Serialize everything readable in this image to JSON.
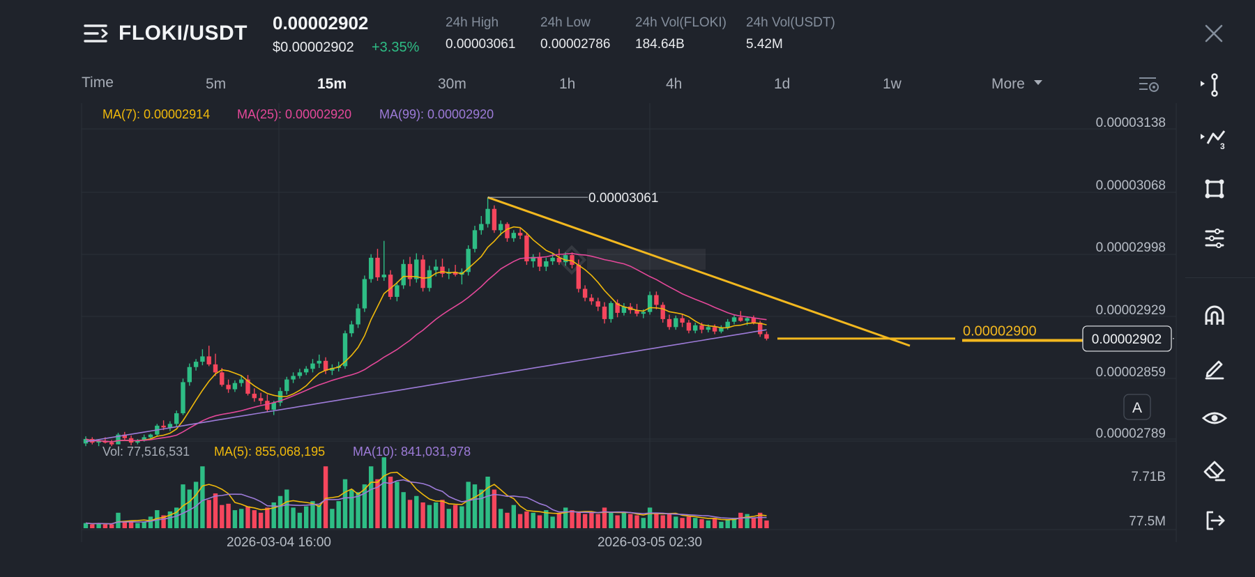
{
  "header": {
    "pair": "FLOKI/USDT",
    "last_price": "0.00002902",
    "usd_price": "$0.00002902",
    "change": "+3.35%",
    "stats": [
      {
        "label": "24h High",
        "value": "0.00003061"
      },
      {
        "label": "24h Low",
        "value": "0.00002786"
      },
      {
        "label": "24h Vol(FLOKI)",
        "value": "184.64B"
      },
      {
        "label": "24h Vol(USDT)",
        "value": "5.42M"
      }
    ]
  },
  "intervals": {
    "items": [
      "Time",
      "5m",
      "15m",
      "30m",
      "1h",
      "4h",
      "1d",
      "1w",
      "More"
    ],
    "active": "15m"
  },
  "legend": {
    "ma7": "MA(7): 0.00002914",
    "ma25": "MA(25): 0.00002920",
    "ma99": "MA(99): 0.00002920",
    "vol": "Vol: 77,516,531",
    "vol_ma5": "MA(5): 855,068,195",
    "vol_ma10": "MA(10): 841,031,978"
  },
  "colors": {
    "up": "#2ebd85",
    "down": "#f6465d",
    "ma7": "#f0b90b",
    "ma25": "#e5489a",
    "ma99": "#9d7bd8",
    "trendline": "#f3b81f",
    "bg": "#1f232b",
    "grid": "#2b3139"
  },
  "auto_scale_label": "A",
  "chart_data": {
    "type": "candlestick",
    "price_axis_ticks": [
      3.138e-05,
      3.068e-05,
      2.998e-05,
      2.929e-05,
      2.859e-05,
      2.789e-05
    ],
    "price_axis_labels": [
      "0.00003138",
      "0.00003068",
      "0.00002998",
      "0.00002929",
      "0.00002859",
      "0.00002789"
    ],
    "volume_axis_labels": [
      "7.71B",
      "77.5M"
    ],
    "time_labels": [
      "2026-03-04 16:00",
      "2026-03-05 02:30"
    ],
    "high_annotation": "0.00003061",
    "horizontal_line_label": "0.00002900",
    "current_price_label": "0.00002902",
    "candles_ohlcv": [
      [
        2784,
        2792,
        2781,
        2789,
        0.4
      ],
      [
        2789,
        2791,
        2783,
        2785,
        0.3
      ],
      [
        2785,
        2789,
        2781,
        2787,
        0.4
      ],
      [
        2787,
        2791,
        2784,
        2785,
        0.3
      ],
      [
        2785,
        2788,
        2781,
        2783,
        0.3
      ],
      [
        2783,
        2796,
        2783,
        2794,
        1.2
      ],
      [
        2794,
        2797,
        2788,
        2790,
        0.5
      ],
      [
        2790,
        2793,
        2782,
        2785,
        0.6
      ],
      [
        2785,
        2789,
        2783,
        2787,
        0.4
      ],
      [
        2787,
        2794,
        2786,
        2791,
        0.5
      ],
      [
        2791,
        2795,
        2788,
        2794,
        0.9
      ],
      [
        2794,
        2806,
        2792,
        2804,
        1.4
      ],
      [
        2804,
        2810,
        2799,
        2802,
        1.0
      ],
      [
        2802,
        2809,
        2798,
        2806,
        1.3
      ],
      [
        2806,
        2821,
        2803,
        2818,
        1.6
      ],
      [
        2818,
        2857,
        2816,
        2853,
        3.4
      ],
      [
        2853,
        2874,
        2849,
        2870,
        3.0
      ],
      [
        2870,
        2879,
        2866,
        2876,
        3.6
      ],
      [
        2876,
        2890,
        2872,
        2882,
        4.8
      ],
      [
        2882,
        2894,
        2871,
        2873,
        2.2
      ],
      [
        2873,
        2885,
        2860,
        2864,
        2.7
      ],
      [
        2864,
        2869,
        2848,
        2850,
        1.8
      ],
      [
        2850,
        2856,
        2841,
        2845,
        1.9
      ],
      [
        2845,
        2855,
        2842,
        2852,
        1.4
      ],
      [
        2852,
        2860,
        2848,
        2856,
        1.5
      ],
      [
        2856,
        2861,
        2838,
        2840,
        1.7
      ],
      [
        2840,
        2846,
        2831,
        2835,
        1.4
      ],
      [
        2835,
        2841,
        2828,
        2832,
        1.2
      ],
      [
        2832,
        2839,
        2819,
        2822,
        1.6
      ],
      [
        2822,
        2832,
        2816,
        2830,
        2.0
      ],
      [
        2830,
        2847,
        2826,
        2843,
        2.5
      ],
      [
        2843,
        2859,
        2839,
        2856,
        3.0
      ],
      [
        2856,
        2864,
        2852,
        2860,
        1.6
      ],
      [
        2860,
        2868,
        2857,
        2864,
        1.2
      ],
      [
        2864,
        2871,
        2861,
        2868,
        1.7
      ],
      [
        2868,
        2879,
        2864,
        2874,
        2.1
      ],
      [
        2874,
        2884,
        2869,
        2877,
        1.8
      ],
      [
        2877,
        2881,
        2862,
        2866,
        4.8
      ],
      [
        2866,
        2873,
        2861,
        2869,
        1.5
      ],
      [
        2869,
        2876,
        2865,
        2871,
        2.1
      ],
      [
        2871,
        2911,
        2868,
        2908,
        3.8
      ],
      [
        2908,
        2922,
        2904,
        2918,
        3.0
      ],
      [
        2918,
        2941,
        2914,
        2936,
        2.8
      ],
      [
        2936,
        2973,
        2932,
        2969,
        3.4
      ],
      [
        2969,
        2997,
        2965,
        2993,
        4.8
      ],
      [
        2993,
        3003,
        2967,
        2971,
        3.8
      ],
      [
        2971,
        3012,
        2967,
        2974,
        5.5
      ],
      [
        2974,
        2979,
        2946,
        2949,
        4.0
      ],
      [
        2949,
        2966,
        2944,
        2962,
        3.6
      ],
      [
        2962,
        2991,
        2958,
        2986,
        2.8
      ],
      [
        2986,
        2994,
        2961,
        2969,
        2.2
      ],
      [
        2969,
        2998,
        2965,
        2991,
        2.5
      ],
      [
        2991,
        2996,
        2955,
        2959,
        2.0
      ],
      [
        2959,
        2984,
        2955,
        2979,
        1.8
      ],
      [
        2979,
        2991,
        2972,
        2983,
        2.0
      ],
      [
        2983,
        2992,
        2971,
        2975,
        2.2
      ],
      [
        2975,
        2981,
        2969,
        2977,
        1.5
      ],
      [
        2977,
        2985,
        2972,
        2974,
        1.8
      ],
      [
        2974,
        2981,
        2963,
        2977,
        1.7
      ],
      [
        2977,
        3007,
        2973,
        3003,
        3.6
      ],
      [
        3003,
        3029,
        2999,
        3024,
        3.4
      ],
      [
        3024,
        3040,
        3019,
        3031,
        3.0
      ],
      [
        3031,
        3061,
        3027,
        3048,
        4.0
      ],
      [
        3048,
        3052,
        3021,
        3024,
        3.0
      ],
      [
        3024,
        3035,
        3018,
        3031,
        1.5
      ],
      [
        3031,
        3033,
        3011,
        3015,
        1.2
      ],
      [
        3015,
        3024,
        3011,
        3021,
        1.8
      ],
      [
        3021,
        3026,
        3014,
        3018,
        1.1
      ],
      [
        3018,
        3021,
        2985,
        2989,
        1.3
      ],
      [
        2989,
        2997,
        2982,
        2994,
        1.2
      ],
      [
        2994,
        2999,
        2978,
        2983,
        1.0
      ],
      [
        2983,
        2993,
        2978,
        2989,
        1.4
      ],
      [
        2989,
        2998,
        2985,
        2993,
        0.9
      ],
      [
        2993,
        3003,
        2985,
        2988,
        1.2
      ],
      [
        2988,
        2999,
        2984,
        2996,
        1.6
      ],
      [
        2996,
        2999,
        2981,
        2985,
        1.4
      ],
      [
        2985,
        2991,
        2954,
        2958,
        1.2
      ],
      [
        2958,
        2962,
        2944,
        2948,
        1.1
      ],
      [
        2948,
        2952,
        2940,
        2944,
        1.2
      ],
      [
        2944,
        2948,
        2933,
        2938,
        1.1
      ],
      [
        2938,
        2943,
        2919,
        2924,
        1.6
      ],
      [
        2924,
        2944,
        2920,
        2942,
        1.2
      ],
      [
        2942,
        2946,
        2926,
        2931,
        1.0
      ],
      [
        2931,
        2942,
        2928,
        2938,
        1.2
      ],
      [
        2938,
        2942,
        2930,
        2934,
        1.1
      ],
      [
        2934,
        2941,
        2927,
        2930,
        1.0
      ],
      [
        2930,
        2935,
        2925,
        2932,
        0.8
      ],
      [
        2932,
        2955,
        2929,
        2951,
        1.6
      ],
      [
        2951,
        2955,
        2935,
        2940,
        1.2
      ],
      [
        2940,
        2943,
        2920,
        2924,
        1.0
      ],
      [
        2924,
        2929,
        2912,
        2915,
        1.1
      ],
      [
        2915,
        2928,
        2912,
        2925,
        0.9
      ],
      [
        2925,
        2929,
        2915,
        2920,
        0.8
      ],
      [
        2920,
        2923,
        2908,
        2911,
        0.9
      ],
      [
        2911,
        2920,
        2908,
        2917,
        0.8
      ],
      [
        2917,
        2920,
        2908,
        2912,
        0.7
      ],
      [
        2912,
        2918,
        2909,
        2915,
        0.6
      ],
      [
        2915,
        2918,
        2907,
        2910,
        0.8
      ],
      [
        2910,
        2917,
        2908,
        2914,
        0.5
      ],
      [
        2914,
        2924,
        2912,
        2921,
        0.7
      ],
      [
        2921,
        2929,
        2918,
        2926,
        0.8
      ],
      [
        2926,
        2933,
        2921,
        2922,
        1.2
      ],
      [
        2922,
        2927,
        2917,
        2925,
        1.1
      ],
      [
        2925,
        2928,
        2918,
        2920,
        0.8
      ],
      [
        2920,
        2922,
        2904,
        2907,
        1.2
      ],
      [
        2907,
        2910,
        2900,
        2902,
        0.6
      ]
    ]
  }
}
